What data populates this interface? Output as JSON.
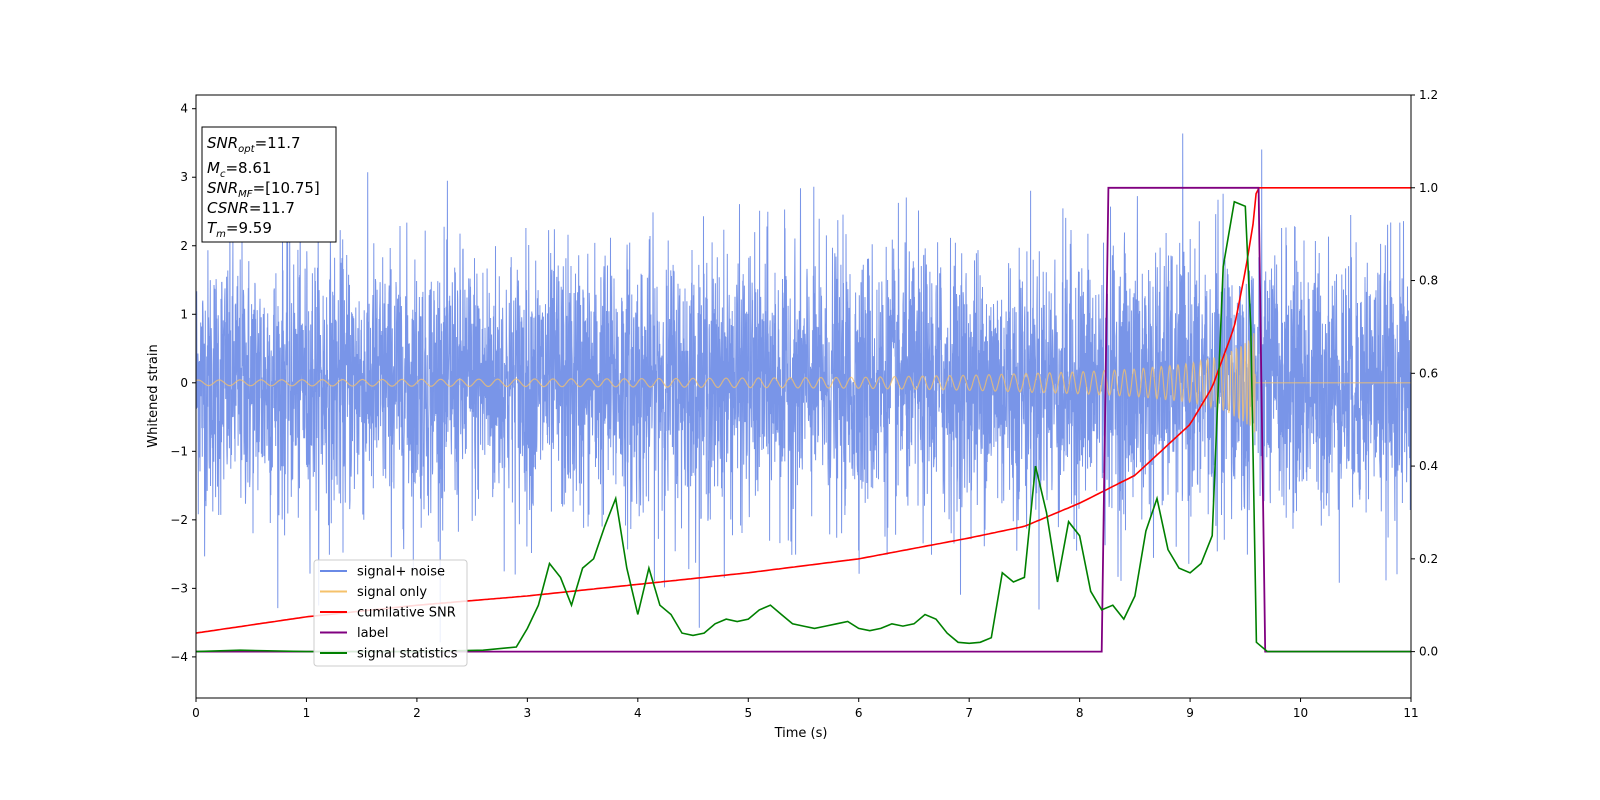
{
  "chart_data": {
    "type": "line",
    "title": "",
    "xlabel": "Time (s)",
    "ylabel": "Whitened strain",
    "xlim": [
      0,
      11
    ],
    "ylim": [
      -4.6,
      4.2
    ],
    "y2lim": [
      -0.1,
      1.2
    ],
    "x_ticks": [
      "0",
      "1",
      "2",
      "3",
      "4",
      "5",
      "6",
      "7",
      "8",
      "9",
      "10",
      "11"
    ],
    "y_ticks": [
      "−4",
      "−3",
      "−2",
      "−1",
      "0",
      "1",
      "2",
      "3",
      "4"
    ],
    "y2_ticks": [
      "0.0",
      "0.2",
      "0.4",
      "0.6",
      "0.8",
      "1.0",
      "1.2"
    ],
    "grid": false,
    "legend_position": "lower-left",
    "annotation": {
      "snr_opt_base": "SNR",
      "snr_opt_sub": "opt",
      "snr_opt_value": "=11.7",
      "mc_base": "M",
      "mc_sub": "c",
      "mc_value": "=8.61",
      "snr_mf_base": "SNR",
      "snr_mf_sub": "MF",
      "snr_mf_value": "=[10.75]",
      "csnr_base": "CSNR",
      "csnr_value": "=11.7",
      "tm_base": "T",
      "tm_sub": "m",
      "tm_value": "=9.59"
    },
    "series": [
      {
        "name": "signal+ noise",
        "color": "#6a8ae6",
        "axis": "left",
        "description_values": {
          "noise_std": 0.95,
          "typical_peak": 2.9,
          "max": 3.85,
          "min": -4.15
        }
      },
      {
        "name": "signal only",
        "color": "#f5c26b",
        "axis": "left",
        "envelope": {
          "x": [
            0,
            2,
            4,
            6,
            7,
            8,
            8.5,
            9,
            9.3,
            9.5,
            9.59,
            9.6,
            11
          ],
          "amplitude": [
            0.04,
            0.05,
            0.06,
            0.08,
            0.11,
            0.16,
            0.2,
            0.28,
            0.4,
            0.58,
            0.75,
            0,
            0
          ]
        }
      },
      {
        "name": "cumilative SNR",
        "color": "#ff0000",
        "axis": "right",
        "x": [
          0,
          1,
          2,
          3,
          4,
          5,
          6,
          7,
          7.5,
          8,
          8.5,
          9,
          9.2,
          9.4,
          9.5,
          9.59,
          9.6,
          11
        ],
        "values": [
          0.04,
          0.075,
          0.1,
          0.12,
          0.145,
          0.17,
          0.2,
          0.245,
          0.27,
          0.32,
          0.38,
          0.49,
          0.57,
          0.7,
          0.82,
          0.95,
          1.0,
          1.0
        ]
      },
      {
        "name": "label",
        "color": "#800080",
        "axis": "right",
        "x": [
          0,
          8.2,
          8.26,
          9.62,
          9.68,
          11
        ],
        "values": [
          0,
          0,
          1,
          1,
          0,
          0
        ]
      },
      {
        "name": "signal statistics",
        "color": "#008000",
        "axis": "right",
        "x": [
          0,
          0.4,
          1,
          2,
          2.6,
          2.9,
          3.0,
          3.1,
          3.2,
          3.3,
          3.4,
          3.5,
          3.6,
          3.7,
          3.8,
          3.9,
          4.0,
          4.1,
          4.2,
          4.3,
          4.4,
          4.5,
          4.6,
          4.7,
          4.8,
          4.9,
          5.0,
          5.1,
          5.2,
          5.3,
          5.4,
          5.5,
          5.6,
          5.7,
          5.8,
          5.9,
          6.0,
          6.1,
          6.2,
          6.3,
          6.4,
          6.5,
          6.6,
          6.7,
          6.8,
          6.9,
          7.0,
          7.1,
          7.2,
          7.3,
          7.4,
          7.5,
          7.6,
          7.7,
          7.8,
          7.9,
          8.0,
          8.1,
          8.2,
          8.3,
          8.4,
          8.5,
          8.6,
          8.7,
          8.8,
          8.9,
          9.0,
          9.1,
          9.2,
          9.3,
          9.4,
          9.5,
          9.55,
          9.6,
          9.7,
          10,
          11
        ],
        "values": [
          0.0,
          0.003,
          0.0,
          0.0,
          0.003,
          0.01,
          0.05,
          0.1,
          0.19,
          0.16,
          0.1,
          0.18,
          0.2,
          0.27,
          0.33,
          0.18,
          0.08,
          0.18,
          0.1,
          0.08,
          0.04,
          0.035,
          0.04,
          0.06,
          0.07,
          0.065,
          0.07,
          0.09,
          0.1,
          0.08,
          0.06,
          0.055,
          0.05,
          0.055,
          0.06,
          0.065,
          0.05,
          0.045,
          0.05,
          0.06,
          0.055,
          0.06,
          0.08,
          0.07,
          0.04,
          0.02,
          0.018,
          0.02,
          0.03,
          0.17,
          0.15,
          0.16,
          0.4,
          0.3,
          0.15,
          0.28,
          0.25,
          0.13,
          0.09,
          0.1,
          0.07,
          0.12,
          0.26,
          0.33,
          0.22,
          0.18,
          0.17,
          0.19,
          0.25,
          0.83,
          0.97,
          0.96,
          0.7,
          0.02,
          0.0,
          0.0,
          0.0
        ]
      }
    ]
  }
}
